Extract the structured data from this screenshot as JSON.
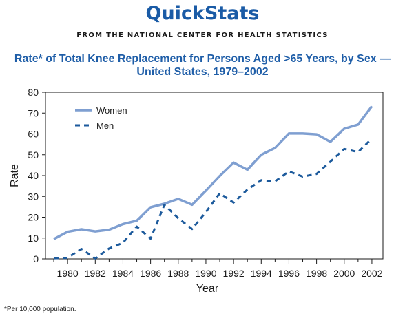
{
  "header": {
    "brand": "QuickStats",
    "subbrand": "FROM THE NATIONAL CENTER FOR HEALTH STATISTICS",
    "title_part1": "Rate* of Total Knee Replacement for Persons Aged ",
    "title_ge": ">",
    "title_part2": "65 Years, by Sex —",
    "title_line2": "United States, 1979–2002"
  },
  "colors": {
    "brand": "#1a5ba6",
    "title": "#1f5ea8",
    "women": "#7f9fd1",
    "men": "#1c5a9c",
    "axis": "#1a1a1a"
  },
  "footnote": "*Per 10,000 population.",
  "chart_data": {
    "type": "line",
    "xlabel": "Year",
    "ylabel": "Rate",
    "xlim": [
      1978.4,
      2002.8
    ],
    "ylim": [
      0,
      80
    ],
    "y_ticks": [
      0,
      10,
      20,
      30,
      40,
      50,
      60,
      70,
      80
    ],
    "x_ticks": [
      1980,
      1982,
      1984,
      1986,
      1988,
      1990,
      1992,
      1994,
      1996,
      1998,
      2000,
      2002
    ],
    "legend_position": "top-left",
    "grid": false,
    "x": [
      1979,
      1980,
      1981,
      1982,
      1983,
      1984,
      1985,
      1986,
      1987,
      1988,
      1989,
      1990,
      1991,
      1992,
      1993,
      1994,
      1995,
      1996,
      1997,
      1998,
      1999,
      2000,
      2001,
      2002
    ],
    "series": [
      {
        "name": "Women",
        "style": "solid",
        "values": [
          9.5,
          13,
          14.2,
          13.2,
          14,
          16.7,
          18.3,
          24.8,
          26.5,
          28.8,
          26,
          32.8,
          39.8,
          46.2,
          42.8,
          50,
          53.3,
          60.2,
          60.2,
          59.8,
          56.2,
          62.5,
          64.5,
          73.3
        ]
      },
      {
        "name": "Men",
        "style": "dashed",
        "values": [
          0.3,
          0.5,
          4.8,
          0.2,
          5,
          7.7,
          15.5,
          9.7,
          26,
          19.5,
          14.3,
          22.5,
          31.5,
          27,
          33.3,
          37.8,
          37.2,
          42,
          39.5,
          40.8,
          46.7,
          52.8,
          51.3,
          57.8
        ]
      }
    ]
  }
}
